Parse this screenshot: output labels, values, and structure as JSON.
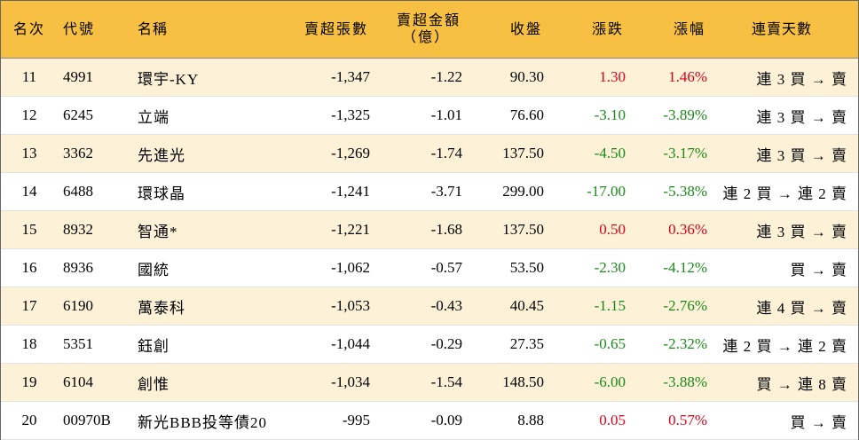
{
  "headers": {
    "rank": "名次",
    "code": "代號",
    "name": "名稱",
    "net_sell_shares": "賣超張數",
    "net_sell_amount_line1": "賣超金額",
    "net_sell_amount_line2": "（億）",
    "close": "收盤",
    "change": "漲跌",
    "change_pct": "漲幅",
    "consecutive_days": "連賣天數"
  },
  "colors": {
    "header_bg": "#f8c042",
    "stripe_bg": "#fdf2d7",
    "up": "#e0001b",
    "down": "#1a8a1a"
  },
  "rows": [
    {
      "rank": "11",
      "code": "4991",
      "name": "環宇-KY",
      "shares": "-1,347",
      "amount": "-1.22",
      "close": "90.30",
      "change": "1.30",
      "pct": "1.46%",
      "days": "連 3 買 → 賣",
      "dir": "up"
    },
    {
      "rank": "12",
      "code": "6245",
      "name": "立端",
      "shares": "-1,325",
      "amount": "-1.01",
      "close": "76.60",
      "change": "-3.10",
      "pct": "-3.89%",
      "days": "連 3 買 → 賣",
      "dir": "down"
    },
    {
      "rank": "13",
      "code": "3362",
      "name": "先進光",
      "shares": "-1,269",
      "amount": "-1.74",
      "close": "137.50",
      "change": "-4.50",
      "pct": "-3.17%",
      "days": "連 3 買 → 賣",
      "dir": "down"
    },
    {
      "rank": "14",
      "code": "6488",
      "name": "環球晶",
      "shares": "-1,241",
      "amount": "-3.71",
      "close": "299.00",
      "change": "-17.00",
      "pct": "-5.38%",
      "days": "連 2 買 → 連 2 賣",
      "dir": "down"
    },
    {
      "rank": "15",
      "code": "8932",
      "name": "智通*",
      "shares": "-1,221",
      "amount": "-1.68",
      "close": "137.50",
      "change": "0.50",
      "pct": "0.36%",
      "days": "連 3 買 → 賣",
      "dir": "up"
    },
    {
      "rank": "16",
      "code": "8936",
      "name": "國統",
      "shares": "-1,062",
      "amount": "-0.57",
      "close": "53.50",
      "change": "-2.30",
      "pct": "-4.12%",
      "days": "買 → 賣",
      "dir": "down"
    },
    {
      "rank": "17",
      "code": "6190",
      "name": "萬泰科",
      "shares": "-1,053",
      "amount": "-0.43",
      "close": "40.45",
      "change": "-1.15",
      "pct": "-2.76%",
      "days": "連 4 買 → 賣",
      "dir": "down"
    },
    {
      "rank": "18",
      "code": "5351",
      "name": "鈺創",
      "shares": "-1,044",
      "amount": "-0.29",
      "close": "27.35",
      "change": "-0.65",
      "pct": "-2.32%",
      "days": "連 2 買 → 連 2 賣",
      "dir": "down"
    },
    {
      "rank": "19",
      "code": "6104",
      "name": "創惟",
      "shares": "-1,034",
      "amount": "-1.54",
      "close": "148.50",
      "change": "-6.00",
      "pct": "-3.88%",
      "days": "買 → 連 8 賣",
      "dir": "down"
    },
    {
      "rank": "20",
      "code": "00970B",
      "name": "新光BBB投等債20",
      "shares": "-995",
      "amount": "-0.09",
      "close": "8.88",
      "change": "0.05",
      "pct": "0.57%",
      "days": "買 → 賣",
      "dir": "up"
    }
  ]
}
